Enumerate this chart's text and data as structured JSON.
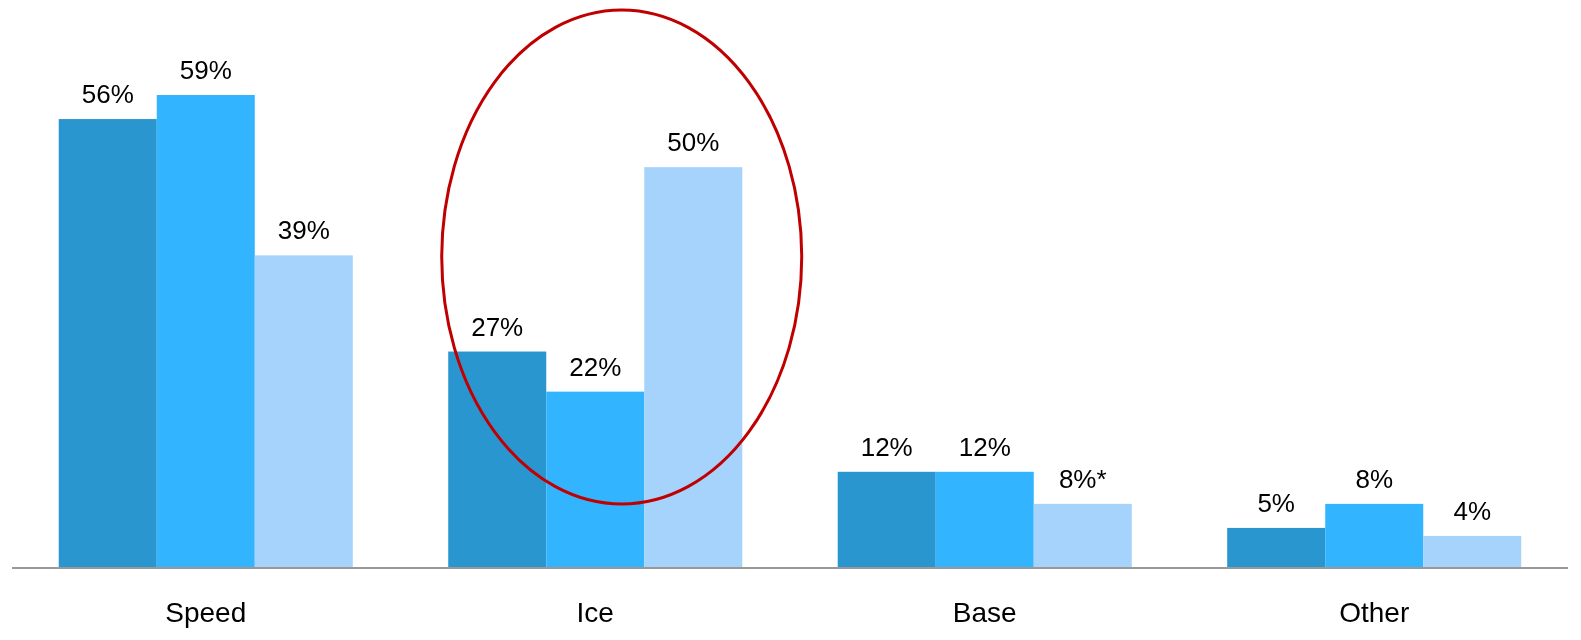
{
  "chart_data": {
    "type": "bar",
    "categories": [
      "Speed",
      "Ice",
      "Base",
      "Other"
    ],
    "series": [
      {
        "color": "#2a96d0",
        "values": [
          56,
          27,
          12,
          5
        ],
        "value_labels": [
          "56%",
          "27%",
          "12%",
          "5%"
        ]
      },
      {
        "color": "#33b4ff",
        "values": [
          59,
          22,
          12,
          8
        ],
        "value_labels": [
          "59%",
          "22%",
          "12%",
          "8%"
        ]
      },
      {
        "color": "#a6d3fb",
        "values": [
          39,
          50,
          8,
          4
        ],
        "value_labels": [
          "39%",
          "50%",
          "8%*",
          "4%"
        ]
      }
    ]
  }
}
